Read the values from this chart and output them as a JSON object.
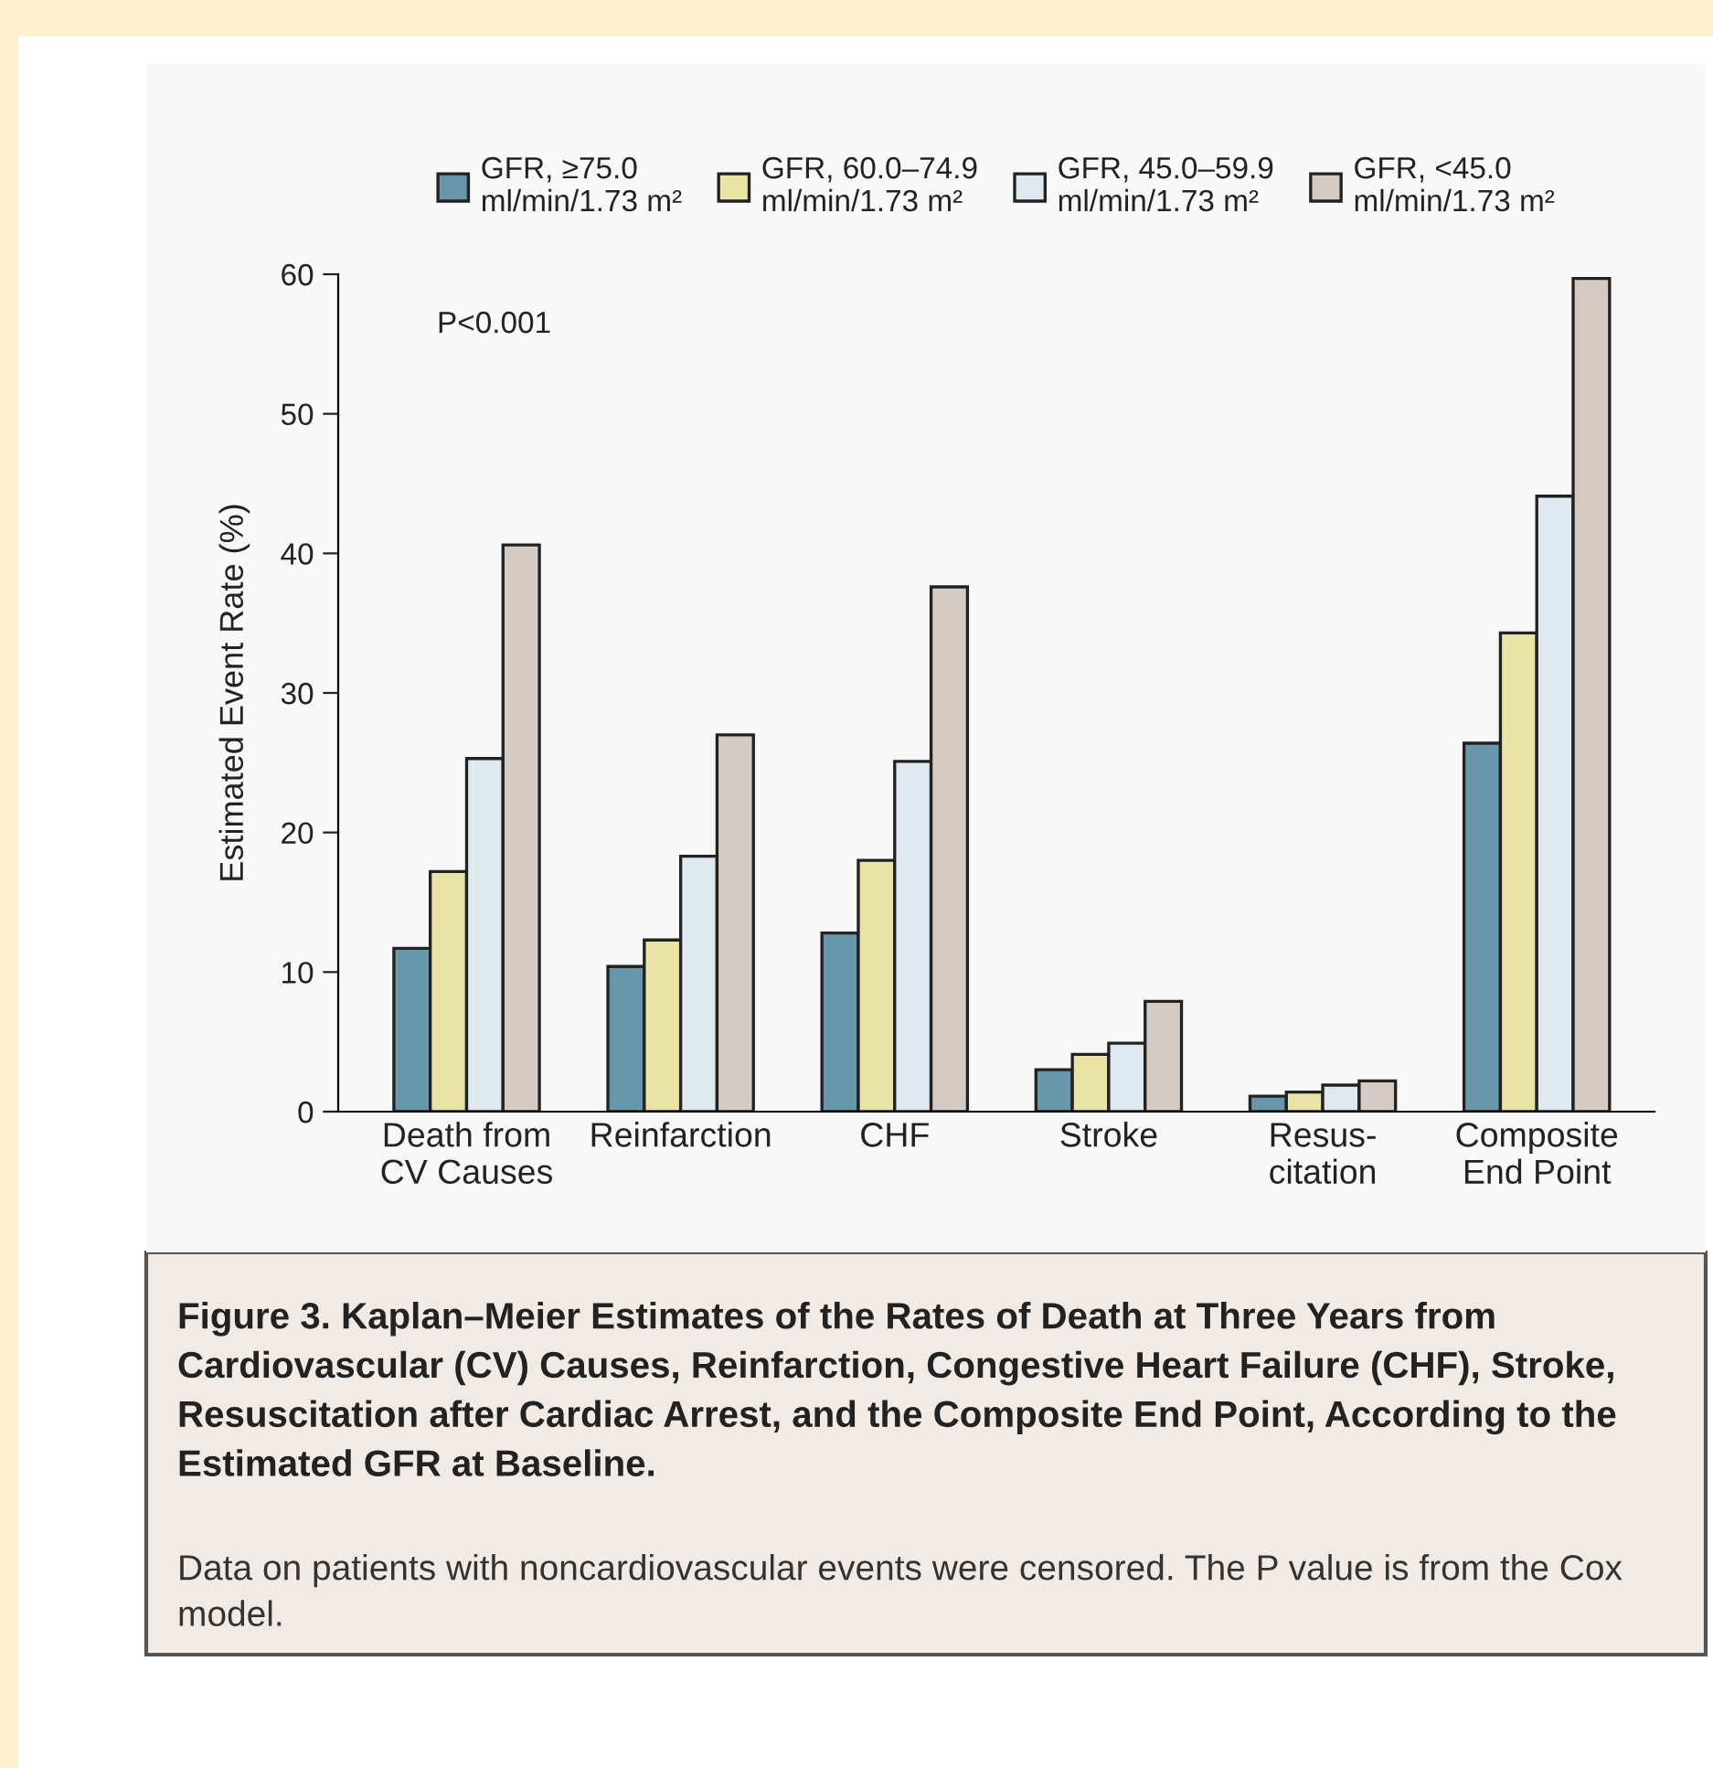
{
  "chart_data": {
    "type": "bar",
    "title": "Figure 3. Kaplan–Meier Estimates of the Rates of Death at Three Years from Cardiovascular (CV) Causes, Reinfarction, Congestive Heart Failure (CHF), Stroke, Resuscitation after Cardiac Arrest, and the Composite End Point, According to the Estimated GFR at Baseline.",
    "subtitle": "Data on patients with noncardiovascular events were censored. The P value is from the Cox model.",
    "ylabel": "Estimated Event Rate (%)",
    "annotations": [
      "P<0.001"
    ],
    "categories": [
      "Death from\nCV Causes",
      "Reinfarction",
      "CHF",
      "Stroke",
      "Resus-\ncitation",
      "Composite\nEnd Point"
    ],
    "series": [
      {
        "name": "GFR, ≥75.0\nml/min/1.73 m²",
        "color": "#6896ab",
        "values": [
          11.7,
          10.4,
          12.8,
          3.0,
          1.1,
          26.4
        ]
      },
      {
        "name": "GFR, 60.0–74.9\nml/min/1.73 m²",
        "color": "#e9e3a8",
        "values": [
          17.2,
          12.3,
          18.0,
          4.1,
          1.4,
          34.3
        ]
      },
      {
        "name": "GFR, 45.0–59.9\nml/min/1.73 m²",
        "color": "#dfe9f0",
        "values": [
          25.3,
          18.3,
          25.1,
          4.9,
          1.9,
          44.1
        ]
      },
      {
        "name": "GFR, <45.0\nml/min/1.73 m²",
        "color": "#d5cbc5",
        "values": [
          40.6,
          27.0,
          37.6,
          7.9,
          2.2,
          59.7
        ]
      }
    ],
    "ylim": [
      0,
      60
    ],
    "yticks": [
      0,
      10,
      20,
      30,
      40,
      50,
      60
    ],
    "grid": false,
    "legend": "top"
  }
}
